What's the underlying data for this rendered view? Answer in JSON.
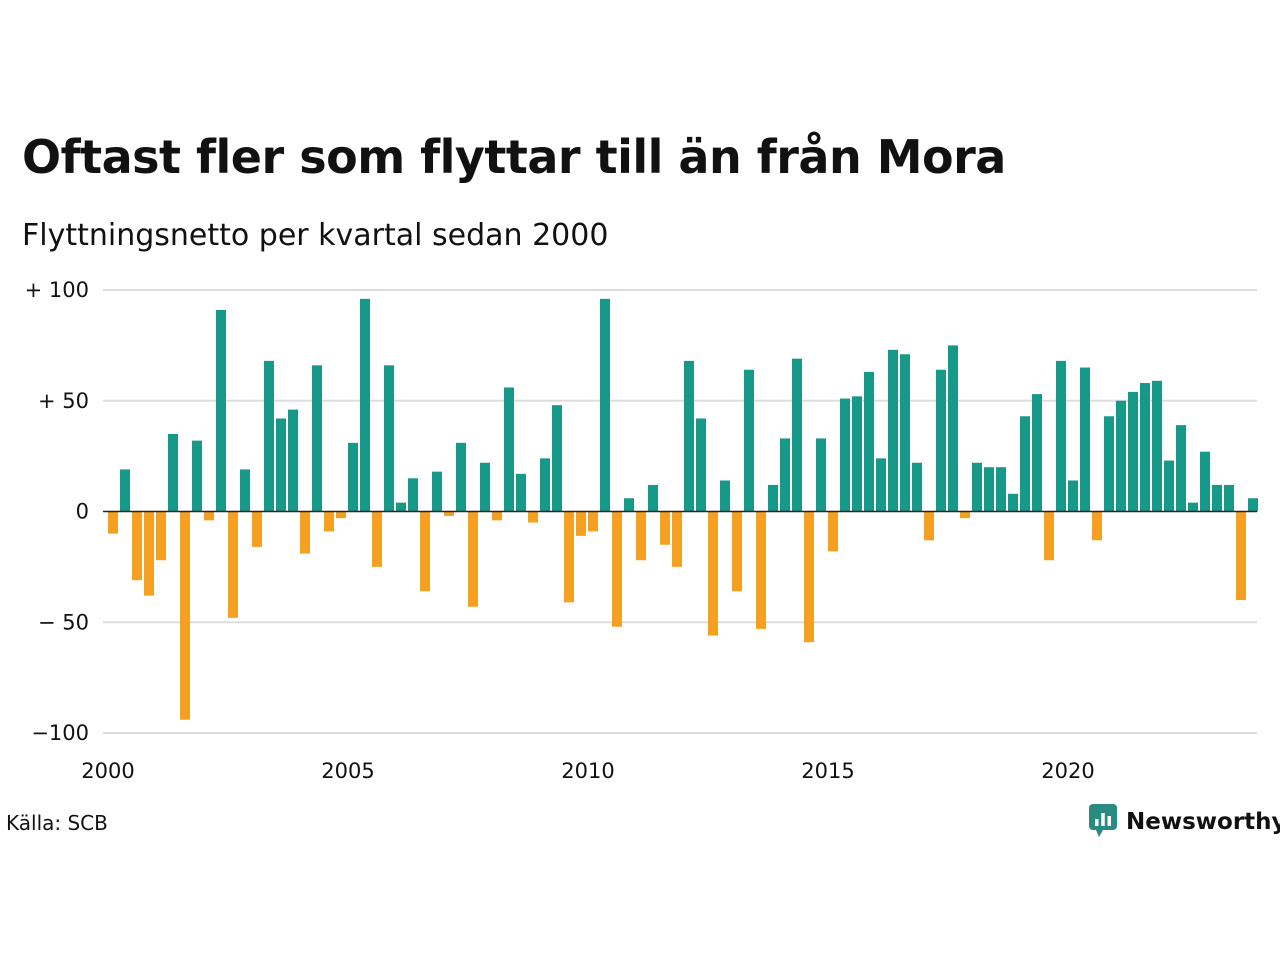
{
  "header": {
    "title": "Oftast fler som flyttar till än från Mora",
    "subtitle": "Flyttningsnetto per kvartal sedan 2000"
  },
  "footer": {
    "source": "Källa: SCB",
    "brand": "Newsworthy",
    "brand_icon": "newsworthy-logo-icon"
  },
  "colors": {
    "positive": "#17998a",
    "negative": "#f5a020",
    "grid": "#dddddd",
    "zero_line": "#222222",
    "brand": "#2a8c80"
  },
  "chart_data": {
    "type": "bar",
    "title": "Oftast fler som flyttar till än från Mora",
    "subtitle": "Flyttningsnetto per kvartal sedan 2000",
    "xlabel": "",
    "ylabel": "",
    "x_start_year": 2000,
    "periods_per_year": 4,
    "values": [
      -10,
      19,
      -31,
      -38,
      -22,
      35,
      -94,
      32,
      -4,
      91,
      -48,
      19,
      -16,
      68,
      42,
      46,
      -19,
      66,
      -9,
      -3,
      31,
      96,
      -25,
      66,
      4,
      15,
      -36,
      18,
      -2,
      31,
      -43,
      22,
      -4,
      56,
      17,
      -5,
      24,
      48,
      -41,
      -11,
      -9,
      96,
      -52,
      6,
      -22,
      12,
      -15,
      -25,
      68,
      42,
      -56,
      14,
      -36,
      64,
      -53,
      12,
      33,
      69,
      -59,
      33,
      -18,
      51,
      52,
      63,
      24,
      73,
      71,
      22,
      -13,
      64,
      75,
      -3,
      22,
      20,
      20,
      8,
      43,
      53,
      -22,
      68,
      14,
      65,
      -13,
      43,
      50,
      54,
      58,
      59,
      23,
      39,
      4,
      27,
      12,
      12,
      -40,
      6
    ],
    "ylim": [
      -100,
      100
    ],
    "y_ticks": [
      100,
      50,
      0,
      -50,
      -100
    ],
    "y_tick_labels": [
      "+ 100",
      "+  50",
      "0",
      "− 50",
      "−100"
    ],
    "x_ticks": [
      2000,
      2005,
      2010,
      2015,
      2020
    ],
    "x_tick_labels": [
      "2000",
      "2005",
      "2010",
      "2015",
      "2020"
    ],
    "grid": "horizontal",
    "legend": "none"
  }
}
